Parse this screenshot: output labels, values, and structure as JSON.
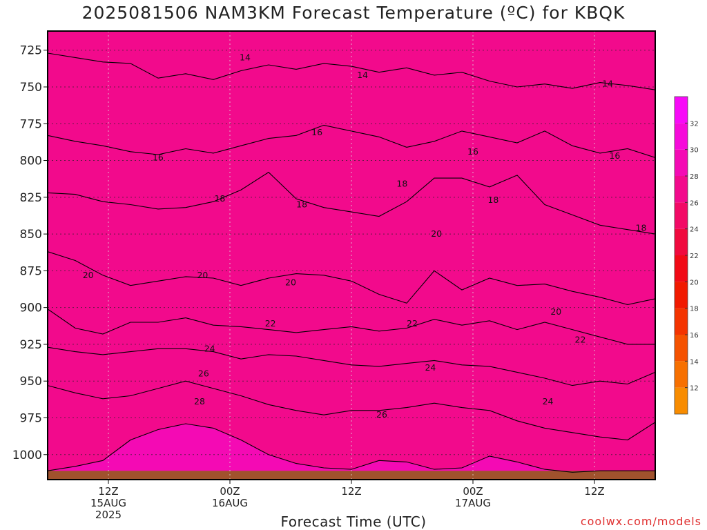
{
  "title": "2025081506 NAM3KM Forecast Temperature (ºC) for KBQK",
  "xlabel": "Forecast Time (UTC)",
  "credit": "coolwx.com/models",
  "chart_data": {
    "type": "heatmap",
    "title": "2025081506 NAM3KM Forecast Temperature (ºC) for KBQK",
    "xlabel": "Forecast Time (UTC)",
    "ylabel": "",
    "x_range_hours_from_init": [
      0,
      60
    ],
    "y_range_hPa": [
      1017,
      712
    ],
    "y_axis_inverted": true,
    "grid": "dotted",
    "legend": "colorbar-right",
    "x_ticks": [
      {
        "hours": 6,
        "lines": [
          "12Z",
          "15AUG",
          "2025"
        ]
      },
      {
        "hours": 18,
        "lines": [
          "00Z",
          "16AUG"
        ]
      },
      {
        "hours": 30,
        "lines": [
          "12Z"
        ]
      },
      {
        "hours": 42,
        "lines": [
          "00Z",
          "17AUG"
        ]
      },
      {
        "hours": 54,
        "lines": [
          "12Z"
        ]
      }
    ],
    "y_ticks": [
      725,
      750,
      775,
      800,
      825,
      850,
      875,
      900,
      925,
      950,
      975,
      1000
    ],
    "colorbar": {
      "levels": [
        10,
        12,
        14,
        16,
        18,
        20,
        22,
        24,
        26,
        28,
        30,
        32,
        34
      ],
      "tick_labels": [
        12,
        14,
        16,
        18,
        20,
        22,
        24,
        26,
        28,
        30,
        32
      ],
      "colors": [
        "#f88c00",
        "#f77000",
        "#f55200",
        "#f43400",
        "#f11a00",
        "#f10a16",
        "#f00a3e",
        "#f20a66",
        "#f20a8c",
        "#f40ab4",
        "#f60ada",
        "#f80af8"
      ]
    },
    "contour_levels": [
      14,
      16,
      18,
      20,
      22,
      24,
      26,
      28
    ],
    "temperature_at_850hPa_C": 18,
    "surface_pressure_hPa": 1011,
    "isotherms": [
      {
        "temp": 14,
        "pressure_hPa": [
          727,
          730,
          733,
          734,
          744,
          741,
          745,
          739,
          735,
          738,
          734,
          736,
          740,
          737,
          742,
          740,
          746,
          750,
          748,
          751,
          747,
          749,
          752
        ]
      },
      {
        "temp": 16,
        "pressure_hPa": [
          783,
          787,
          790,
          794,
          796,
          792,
          795,
          790,
          785,
          783,
          776,
          780,
          784,
          791,
          787,
          780,
          784,
          788,
          780,
          790,
          795,
          792,
          798
        ]
      },
      {
        "temp": 18,
        "pressure_hPa": [
          822,
          823,
          828,
          830,
          833,
          832,
          828,
          820,
          808,
          826,
          832,
          835,
          838,
          828,
          812,
          812,
          818,
          810,
          830,
          837,
          844,
          847,
          850
        ]
      },
      {
        "temp": 20,
        "pressure_hPa": [
          862,
          868,
          878,
          885,
          882,
          879,
          880,
          885,
          880,
          877,
          878,
          882,
          891,
          897,
          875,
          888,
          880,
          885,
          884,
          889,
          893,
          898,
          894
        ]
      },
      {
        "temp": 22,
        "pressure_hPa": [
          901,
          914,
          918,
          910,
          910,
          907,
          912,
          913,
          915,
          917,
          915,
          913,
          916,
          914,
          908,
          912,
          909,
          915,
          910,
          915,
          920,
          925,
          925
        ]
      },
      {
        "temp": 24,
        "pressure_hPa": [
          927,
          930,
          932,
          930,
          928,
          928,
          930,
          935,
          932,
          933,
          936,
          939,
          940,
          938,
          936,
          939,
          940,
          944,
          948,
          953,
          950,
          952,
          944
        ]
      },
      {
        "temp": 26,
        "pressure_hPa": [
          953,
          958,
          962,
          960,
          955,
          950,
          955,
          960,
          966,
          970,
          973,
          970,
          970,
          968,
          965,
          968,
          970,
          977,
          982,
          985,
          988,
          990,
          978
        ]
      },
      {
        "temp": 28,
        "pressure_hPa": [
          1011,
          1008,
          1004,
          990,
          983,
          979,
          982,
          990,
          1000,
          1006,
          1009,
          1010,
          1004,
          1005,
          1010,
          1009,
          1001,
          1005,
          1010,
          1012,
          1011,
          1011,
          1011
        ]
      }
    ],
    "contour_labels": [
      {
        "text": "14",
        "hours": 19.5,
        "p": 730
      },
      {
        "text": "14",
        "hours": 31.1,
        "p": 742
      },
      {
        "text": "14",
        "hours": 55.3,
        "p": 748
      },
      {
        "text": "16",
        "hours": 10.9,
        "p": 798
      },
      {
        "text": "16",
        "hours": 26.6,
        "p": 781
      },
      {
        "text": "16",
        "hours": 42.0,
        "p": 794
      },
      {
        "text": "16",
        "hours": 56.0,
        "p": 797
      },
      {
        "text": "18",
        "hours": 17.0,
        "p": 826
      },
      {
        "text": "18",
        "hours": 25.1,
        "p": 830
      },
      {
        "text": "18",
        "hours": 35.0,
        "p": 816
      },
      {
        "text": "18",
        "hours": 44.0,
        "p": 827
      },
      {
        "text": "18",
        "hours": 58.6,
        "p": 846
      },
      {
        "text": "20",
        "hours": 4.0,
        "p": 878
      },
      {
        "text": "20",
        "hours": 15.3,
        "p": 878
      },
      {
        "text": "20",
        "hours": 24.0,
        "p": 883
      },
      {
        "text": "20",
        "hours": 38.4,
        "p": 850
      },
      {
        "text": "20",
        "hours": 50.2,
        "p": 903
      },
      {
        "text": "22",
        "hours": 22.0,
        "p": 911
      },
      {
        "text": "22",
        "hours": 36.0,
        "p": 911
      },
      {
        "text": "22",
        "hours": 52.6,
        "p": 922
      },
      {
        "text": "24",
        "hours": 16.0,
        "p": 928
      },
      {
        "text": "24",
        "hours": 37.8,
        "p": 941
      },
      {
        "text": "24",
        "hours": 49.4,
        "p": 964
      },
      {
        "text": "26",
        "hours": 15.4,
        "p": 945
      },
      {
        "text": "26",
        "hours": 33.0,
        "p": 973
      },
      {
        "text": "28",
        "hours": 15.0,
        "p": 964
      }
    ]
  }
}
